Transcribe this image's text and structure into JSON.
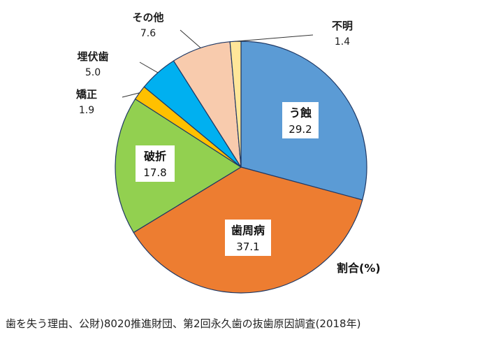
{
  "chart_data": {
    "type": "pie",
    "unit_label": "割合(%)",
    "slices": [
      {
        "label": "う蝕",
        "value": 29.2,
        "value_text": "29.2",
        "color": "#5b9bd5"
      },
      {
        "label": "歯周病",
        "value": 37.1,
        "value_text": "37.1",
        "color": "#ed7d31"
      },
      {
        "label": "破折",
        "value": 17.8,
        "value_text": "17.8",
        "color": "#92d050"
      },
      {
        "label": "矯正",
        "value": 1.9,
        "value_text": "1.9",
        "color": "#ffc000"
      },
      {
        "label": "埋伏歯",
        "value": 5.0,
        "value_text": "5.0",
        "color": "#00b0f0"
      },
      {
        "label": "その他",
        "value": 7.6,
        "value_text": "7.6",
        "color": "#f8cbad"
      },
      {
        "label": "不明",
        "value": 1.4,
        "value_text": "1.4",
        "color": "#ffe699"
      }
    ]
  },
  "caption": "歯を失う理由、公財)8020推進財団、第2回永久歯の抜歯原因調査(2018年)"
}
